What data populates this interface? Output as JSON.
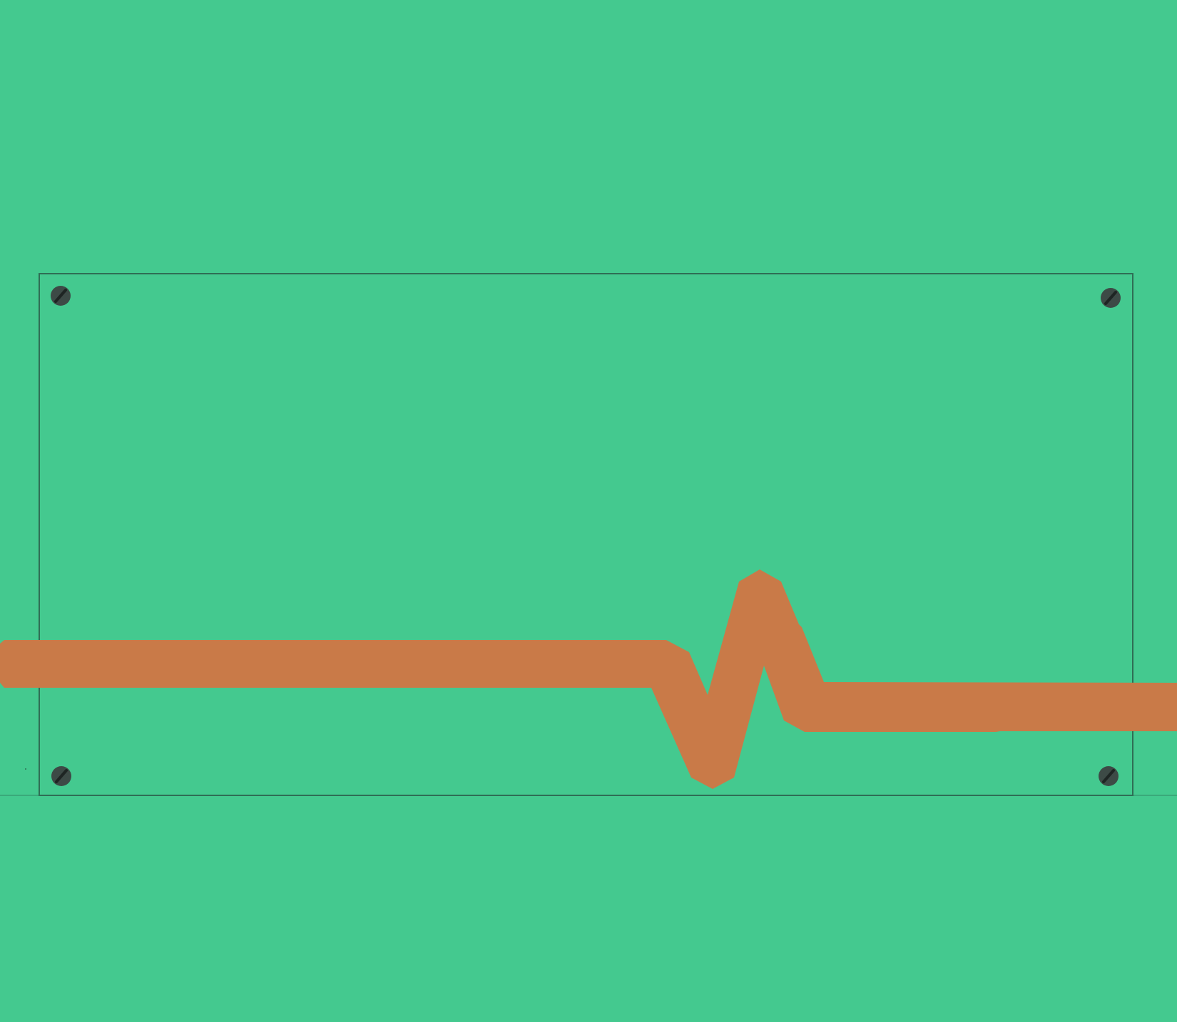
{
  "colors": {
    "background": "#44c98f",
    "panel_outline": "#2f6e55",
    "floor_line": "#3aa97a",
    "path": "#c97a48",
    "screw_head": "#3d4a46",
    "screw_slot": "#1e2523"
  },
  "panel": {
    "screws": [
      {
        "id": "top-left",
        "icon": "screw-icon"
      },
      {
        "id": "top-right",
        "icon": "screw-icon"
      },
      {
        "id": "bottom-left",
        "icon": "screw-icon"
      },
      {
        "id": "bottom-right",
        "icon": "screw-icon"
      }
    ]
  },
  "path": {
    "icon": "pulse-path",
    "description_shape": "flat-dip-peak-flat"
  }
}
